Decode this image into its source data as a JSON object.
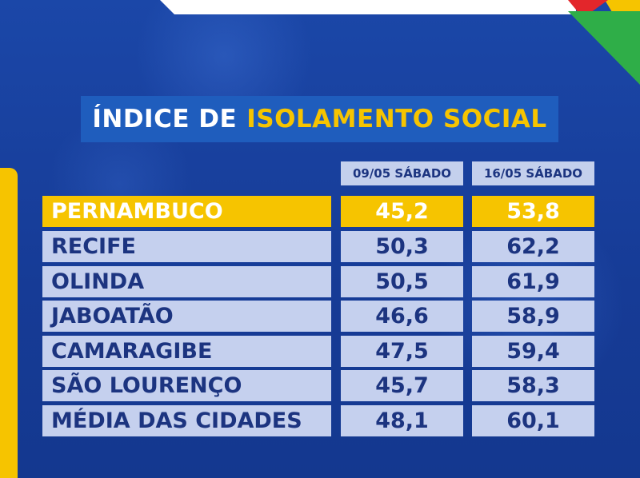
{
  "title": {
    "part1": "ÍNDICE DE",
    "part2": "ISOLAMENTO SOCIAL"
  },
  "columns": [
    "09/05 SÁBADO",
    "16/05 SÁBADO"
  ],
  "rows": [
    {
      "name": "PERNAMBUCO",
      "v1": "45,2",
      "v2": "53,8"
    },
    {
      "name": "RECIFE",
      "v1": "50,3",
      "v2": "62,2"
    },
    {
      "name": "OLINDA",
      "v1": "50,5",
      "v2": "61,9"
    },
    {
      "name": "JABOATÃO",
      "v1": "46,6",
      "v2": "58,9"
    },
    {
      "name": "CAMARAGIBE",
      "v1": "47,5",
      "v2": "59,4"
    },
    {
      "name": "SÃO LOURENÇO",
      "v1": "45,7",
      "v2": "58,3"
    },
    {
      "name": "MÉDIA DAS CIDADES",
      "v1": "48,1",
      "v2": "60,1"
    }
  ],
  "colors": {
    "background": "#173f9d",
    "title_box": "#1f5dbd",
    "highlight": "#f6c400",
    "cell": "#c5d0ee",
    "text_dark": "#1c3480"
  }
}
